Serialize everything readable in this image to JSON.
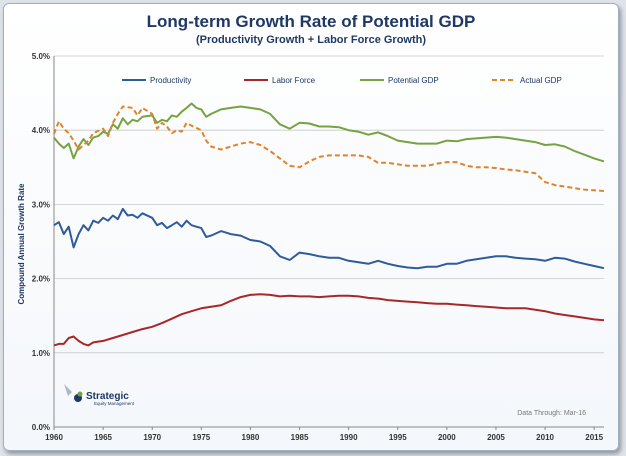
{
  "chart_data": {
    "type": "line",
    "title": "Long-term Growth Rate of Potential GDP",
    "subtitle": "(Productivity Growth + Labor Force Growth)",
    "ylabel": "Compound Annual Growth Rate",
    "xlabel": "",
    "xlim": [
      1960,
      2016
    ],
    "ylim": [
      0,
      5
    ],
    "x_ticks": [
      "1960",
      "1965",
      "1970",
      "1975",
      "1980",
      "1985",
      "1990",
      "1995",
      "2000",
      "2005",
      "2010",
      "2015"
    ],
    "y_ticks": [
      "0.0%",
      "1.0%",
      "2.0%",
      "3.0%",
      "4.0%",
      "5.0%"
    ],
    "grid": "horizontal",
    "legend_position": "top",
    "note": "Data Through:  Mar-16",
    "logo": {
      "name": "Strategic",
      "tagline": "Equity Management"
    },
    "series": [
      {
        "name": "Productivity",
        "color": "#2e5c9a",
        "style": "solid",
        "points": [
          [
            1960,
            2.72
          ],
          [
            1960.5,
            2.76
          ],
          [
            1961,
            2.6
          ],
          [
            1961.5,
            2.7
          ],
          [
            1962,
            2.42
          ],
          [
            1962.5,
            2.6
          ],
          [
            1963,
            2.72
          ],
          [
            1963.5,
            2.65
          ],
          [
            1964,
            2.78
          ],
          [
            1964.5,
            2.75
          ],
          [
            1965,
            2.82
          ],
          [
            1965.5,
            2.78
          ],
          [
            1966,
            2.85
          ],
          [
            1966.5,
            2.8
          ],
          [
            1967,
            2.94
          ],
          [
            1967.5,
            2.85
          ],
          [
            1968,
            2.86
          ],
          [
            1968.5,
            2.82
          ],
          [
            1969,
            2.88
          ],
          [
            1970,
            2.82
          ],
          [
            1970.5,
            2.72
          ],
          [
            1971,
            2.75
          ],
          [
            1971.5,
            2.68
          ],
          [
            1972,
            2.72
          ],
          [
            1972.5,
            2.76
          ],
          [
            1973,
            2.7
          ],
          [
            1973.5,
            2.78
          ],
          [
            1974,
            2.72
          ],
          [
            1974.5,
            2.7
          ],
          [
            1975,
            2.68
          ],
          [
            1975.5,
            2.56
          ],
          [
            1976,
            2.58
          ],
          [
            1977,
            2.64
          ],
          [
            1978,
            2.6
          ],
          [
            1979,
            2.58
          ],
          [
            1980,
            2.52
          ],
          [
            1981,
            2.5
          ],
          [
            1982,
            2.44
          ],
          [
            1983,
            2.3
          ],
          [
            1984,
            2.25
          ],
          [
            1985,
            2.35
          ],
          [
            1986,
            2.33
          ],
          [
            1987,
            2.3
          ],
          [
            1988,
            2.28
          ],
          [
            1989,
            2.28
          ],
          [
            1990,
            2.24
          ],
          [
            1991,
            2.22
          ],
          [
            1992,
            2.2
          ],
          [
            1993,
            2.24
          ],
          [
            1994,
            2.2
          ],
          [
            1995,
            2.17
          ],
          [
            1996,
            2.15
          ],
          [
            1997,
            2.14
          ],
          [
            1998,
            2.16
          ],
          [
            1999,
            2.16
          ],
          [
            2000,
            2.2
          ],
          [
            2001,
            2.2
          ],
          [
            2002,
            2.24
          ],
          [
            2003,
            2.26
          ],
          [
            2004,
            2.28
          ],
          [
            2005,
            2.3
          ],
          [
            2006,
            2.3
          ],
          [
            2007,
            2.28
          ],
          [
            2008,
            2.27
          ],
          [
            2009,
            2.26
          ],
          [
            2010,
            2.24
          ],
          [
            2011,
            2.28
          ],
          [
            2012,
            2.27
          ],
          [
            2013,
            2.23
          ],
          [
            2014,
            2.2
          ],
          [
            2015,
            2.17
          ],
          [
            2016,
            2.14
          ]
        ]
      },
      {
        "name": "Labor Force",
        "color": "#a8282a",
        "style": "solid",
        "points": [
          [
            1960,
            1.1
          ],
          [
            1960.5,
            1.12
          ],
          [
            1961,
            1.12
          ],
          [
            1961.5,
            1.2
          ],
          [
            1962,
            1.22
          ],
          [
            1962.5,
            1.16
          ],
          [
            1963,
            1.12
          ],
          [
            1963.5,
            1.1
          ],
          [
            1964,
            1.14
          ],
          [
            1965,
            1.16
          ],
          [
            1966,
            1.2
          ],
          [
            1967,
            1.24
          ],
          [
            1968,
            1.28
          ],
          [
            1969,
            1.32
          ],
          [
            1970,
            1.35
          ],
          [
            1971,
            1.4
          ],
          [
            1972,
            1.46
          ],
          [
            1973,
            1.52
          ],
          [
            1974,
            1.56
          ],
          [
            1975,
            1.6
          ],
          [
            1976,
            1.62
          ],
          [
            1977,
            1.64
          ],
          [
            1978,
            1.7
          ],
          [
            1979,
            1.75
          ],
          [
            1980,
            1.78
          ],
          [
            1981,
            1.79
          ],
          [
            1982,
            1.78
          ],
          [
            1983,
            1.76
          ],
          [
            1984,
            1.77
          ],
          [
            1985,
            1.76
          ],
          [
            1986,
            1.76
          ],
          [
            1987,
            1.75
          ],
          [
            1988,
            1.76
          ],
          [
            1989,
            1.77
          ],
          [
            1990,
            1.77
          ],
          [
            1991,
            1.76
          ],
          [
            1992,
            1.74
          ],
          [
            1993,
            1.73
          ],
          [
            1994,
            1.71
          ],
          [
            1995,
            1.7
          ],
          [
            1996,
            1.69
          ],
          [
            1997,
            1.68
          ],
          [
            1998,
            1.67
          ],
          [
            1999,
            1.66
          ],
          [
            2000,
            1.66
          ],
          [
            2001,
            1.65
          ],
          [
            2002,
            1.64
          ],
          [
            2003,
            1.63
          ],
          [
            2004,
            1.62
          ],
          [
            2005,
            1.61
          ],
          [
            2006,
            1.6
          ],
          [
            2007,
            1.6
          ],
          [
            2008,
            1.6
          ],
          [
            2009,
            1.58
          ],
          [
            2010,
            1.56
          ],
          [
            2011,
            1.53
          ],
          [
            2012,
            1.51
          ],
          [
            2013,
            1.49
          ],
          [
            2014,
            1.47
          ],
          [
            2015,
            1.45
          ],
          [
            2016,
            1.44
          ]
        ]
      },
      {
        "name": "Potential GDP",
        "color": "#76a341",
        "style": "solid",
        "points": [
          [
            1960,
            3.9
          ],
          [
            1960.5,
            3.82
          ],
          [
            1961,
            3.76
          ],
          [
            1961.5,
            3.82
          ],
          [
            1962,
            3.62
          ],
          [
            1962.5,
            3.78
          ],
          [
            1963,
            3.88
          ],
          [
            1963.5,
            3.8
          ],
          [
            1964,
            3.9
          ],
          [
            1964.5,
            3.92
          ],
          [
            1965,
            3.98
          ],
          [
            1965.5,
            3.95
          ],
          [
            1966,
            4.08
          ],
          [
            1966.5,
            4.02
          ],
          [
            1967,
            4.16
          ],
          [
            1967.5,
            4.08
          ],
          [
            1968,
            4.14
          ],
          [
            1968.5,
            4.12
          ],
          [
            1969,
            4.18
          ],
          [
            1970,
            4.2
          ],
          [
            1970.5,
            4.1
          ],
          [
            1971,
            4.14
          ],
          [
            1971.5,
            4.12
          ],
          [
            1972,
            4.2
          ],
          [
            1972.5,
            4.18
          ],
          [
            1973,
            4.25
          ],
          [
            1973.5,
            4.3
          ],
          [
            1974,
            4.36
          ],
          [
            1974.5,
            4.3
          ],
          [
            1975,
            4.28
          ],
          [
            1975.5,
            4.18
          ],
          [
            1976,
            4.22
          ],
          [
            1977,
            4.28
          ],
          [
            1978,
            4.3
          ],
          [
            1979,
            4.32
          ],
          [
            1980,
            4.3
          ],
          [
            1981,
            4.28
          ],
          [
            1982,
            4.22
          ],
          [
            1983,
            4.08
          ],
          [
            1984,
            4.02
          ],
          [
            1985,
            4.1
          ],
          [
            1986,
            4.09
          ],
          [
            1987,
            4.05
          ],
          [
            1988,
            4.05
          ],
          [
            1989,
            4.04
          ],
          [
            1990,
            4.0
          ],
          [
            1991,
            3.98
          ],
          [
            1992,
            3.94
          ],
          [
            1993,
            3.97
          ],
          [
            1994,
            3.92
          ],
          [
            1995,
            3.86
          ],
          [
            1996,
            3.84
          ],
          [
            1997,
            3.82
          ],
          [
            1998,
            3.82
          ],
          [
            1999,
            3.82
          ],
          [
            2000,
            3.86
          ],
          [
            2001,
            3.85
          ],
          [
            2002,
            3.88
          ],
          [
            2003,
            3.89
          ],
          [
            2004,
            3.9
          ],
          [
            2005,
            3.91
          ],
          [
            2006,
            3.9
          ],
          [
            2007,
            3.88
          ],
          [
            2008,
            3.86
          ],
          [
            2009,
            3.84
          ],
          [
            2010,
            3.8
          ],
          [
            2011,
            3.81
          ],
          [
            2012,
            3.78
          ],
          [
            2013,
            3.72
          ],
          [
            2014,
            3.67
          ],
          [
            2015,
            3.62
          ],
          [
            2016,
            3.58
          ]
        ]
      },
      {
        "name": "Actual GDP",
        "color": "#e0832a",
        "style": "dashed",
        "points": [
          [
            1960,
            3.95
          ],
          [
            1960.5,
            4.12
          ],
          [
            1961,
            4.02
          ],
          [
            1961.5,
            3.96
          ],
          [
            1962,
            3.86
          ],
          [
            1962.5,
            3.74
          ],
          [
            1963,
            3.8
          ],
          [
            1963.5,
            3.86
          ],
          [
            1964,
            3.96
          ],
          [
            1965,
            4.02
          ],
          [
            1965.5,
            3.92
          ],
          [
            1966,
            4.1
          ],
          [
            1966.5,
            4.22
          ],
          [
            1967,
            4.32
          ],
          [
            1968,
            4.3
          ],
          [
            1968.5,
            4.2
          ],
          [
            1969,
            4.3
          ],
          [
            1970,
            4.22
          ],
          [
            1970.5,
            4.02
          ],
          [
            1971,
            4.1
          ],
          [
            1971.5,
            4.05
          ],
          [
            1972,
            3.96
          ],
          [
            1972.5,
            4.0
          ],
          [
            1973,
            3.98
          ],
          [
            1973.5,
            4.1
          ],
          [
            1974,
            4.06
          ],
          [
            1975,
            4.0
          ],
          [
            1975.5,
            3.86
          ],
          [
            1976,
            3.78
          ],
          [
            1977,
            3.74
          ],
          [
            1978,
            3.78
          ],
          [
            1979,
            3.82
          ],
          [
            1980,
            3.84
          ],
          [
            1981,
            3.8
          ],
          [
            1982,
            3.72
          ],
          [
            1983,
            3.62
          ],
          [
            1984,
            3.52
          ],
          [
            1985,
            3.5
          ],
          [
            1986,
            3.58
          ],
          [
            1987,
            3.64
          ],
          [
            1988,
            3.66
          ],
          [
            1989,
            3.66
          ],
          [
            1990,
            3.66
          ],
          [
            1991,
            3.66
          ],
          [
            1992,
            3.64
          ],
          [
            1993,
            3.56
          ],
          [
            1994,
            3.56
          ],
          [
            1995,
            3.54
          ],
          [
            1996,
            3.52
          ],
          [
            1997,
            3.52
          ],
          [
            1998,
            3.52
          ],
          [
            1999,
            3.55
          ],
          [
            2000,
            3.57
          ],
          [
            2001,
            3.57
          ],
          [
            2002,
            3.52
          ],
          [
            2003,
            3.5
          ],
          [
            2004,
            3.5
          ],
          [
            2005,
            3.49
          ],
          [
            2006,
            3.47
          ],
          [
            2007,
            3.46
          ],
          [
            2008,
            3.44
          ],
          [
            2009,
            3.42
          ],
          [
            2010,
            3.3
          ],
          [
            2011,
            3.26
          ],
          [
            2012,
            3.24
          ],
          [
            2013,
            3.22
          ],
          [
            2014,
            3.2
          ],
          [
            2015,
            3.19
          ],
          [
            2016,
            3.18
          ]
        ]
      }
    ]
  }
}
